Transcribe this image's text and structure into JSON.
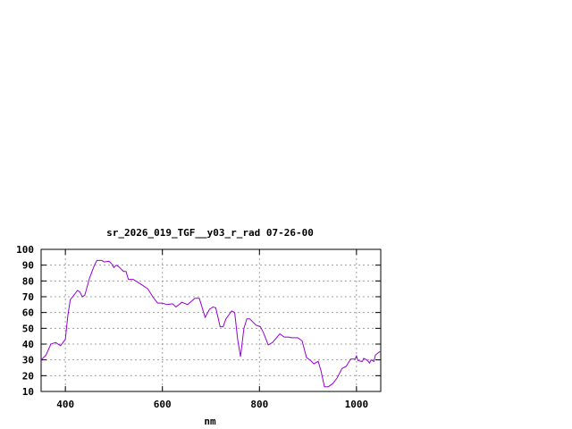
{
  "chart_data": {
    "type": "line",
    "title": "sr_2026_019_TGF__y03_r_rad 07-26-00",
    "xlabel": "nm",
    "ylabel": "",
    "xlim": [
      350,
      1050
    ],
    "ylim": [
      10,
      100
    ],
    "xticks": [
      400,
      600,
      800,
      1000
    ],
    "yticks": [
      10,
      20,
      30,
      40,
      50,
      60,
      70,
      80,
      90,
      100
    ],
    "grid": true,
    "legend": "none",
    "series": [
      {
        "color": "#9400d3",
        "x": [
          350,
          360,
          370,
          380,
          390,
          400,
          405,
          410,
          420,
          425,
          430,
          435,
          440,
          450,
          460,
          465,
          475,
          480,
          490,
          495,
          500,
          505,
          510,
          520,
          525,
          530,
          540,
          550,
          560,
          570,
          580,
          590,
          600,
          609,
          621,
          628,
          640,
          652,
          667,
          676,
          688,
          697,
          704,
          710,
          719,
          725,
          731,
          743,
          749,
          755,
          761,
          768,
          774,
          780,
          793,
          802,
          808,
          818,
          827,
          842,
          851,
          860,
          866,
          879,
          888,
          897,
          906,
          912,
          921,
          927,
          934,
          942,
          951,
          960,
          970,
          979,
          988,
          997,
          1000,
          1003,
          1012,
          1015,
          1021,
          1027,
          1030,
          1036,
          1039,
          1047,
          1050
        ],
        "y": [
          30,
          33,
          40,
          41,
          39,
          43,
          58,
          68,
          72,
          74,
          73,
          70,
          71,
          82,
          90,
          93,
          93,
          92,
          92.5,
          91,
          88.5,
          90,
          89,
          86,
          86,
          81,
          81,
          79,
          77,
          75,
          70,
          66,
          66,
          65,
          65.5,
          63.5,
          66.5,
          65,
          69,
          69,
          57,
          62,
          63.5,
          63,
          51,
          51,
          56,
          61,
          60,
          43,
          32,
          50,
          56,
          56,
          52,
          51,
          47.5,
          39.5,
          41,
          46.5,
          44.5,
          44.5,
          44,
          44,
          42,
          31.5,
          29.5,
          27.5,
          29,
          23,
          13,
          13,
          15,
          18.5,
          24.5,
          26,
          30.5,
          30.5,
          32.5,
          29.5,
          29,
          31,
          30,
          28,
          30,
          29,
          33,
          35,
          35
        ]
      }
    ]
  }
}
